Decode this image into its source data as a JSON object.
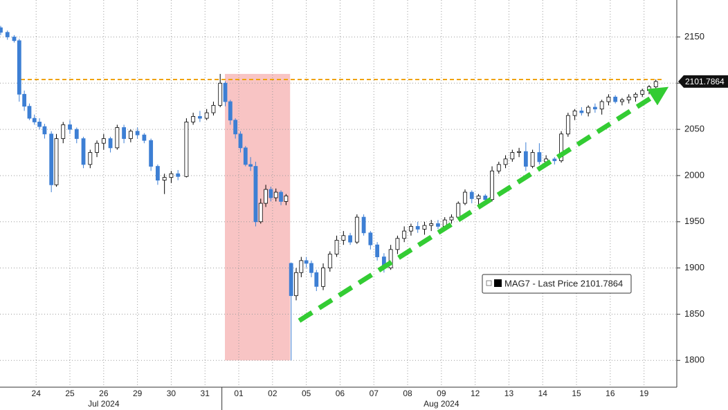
{
  "chart_data": {
    "type": "candlestick",
    "series": [
      {
        "name": "MAG7 - Last Price 2101.7864",
        "up_color": "#ffffff",
        "down_color": "#3d7fd4",
        "x": [
          -1.05,
          -0.85,
          -0.65,
          -0.5,
          -0.35,
          -0.2,
          -0.05,
          0.1,
          0.25,
          0.45,
          0.6,
          0.8,
          1.0,
          1.2,
          1.4,
          1.6,
          1.8,
          2.0,
          2.2,
          2.4,
          2.6,
          2.8,
          3.0,
          3.2,
          3.4,
          3.6,
          3.8,
          4.0,
          4.2,
          4.45,
          4.65,
          4.85,
          5.05,
          5.25,
          5.45,
          5.6,
          5.75,
          5.9,
          6.05,
          6.2,
          6.35,
          6.5,
          6.65,
          6.8,
          6.95,
          7.1,
          7.25,
          7.4,
          7.55,
          7.7,
          7.85,
          8.0,
          8.15,
          8.3,
          8.5,
          8.7,
          8.9,
          9.1,
          9.3,
          9.5,
          9.7,
          9.9,
          10.1,
          10.3,
          10.5,
          10.7,
          10.9,
          11.1,
          11.3,
          11.5,
          11.7,
          11.9,
          12.1,
          12.3,
          12.5,
          12.7,
          12.9,
          13.1,
          13.3,
          13.5,
          13.7,
          13.9,
          14.1,
          14.3,
          14.5,
          14.7,
          14.9,
          15.1,
          15.35,
          15.55,
          15.75,
          15.95,
          16.15,
          16.35,
          16.55,
          16.75,
          16.95,
          17.15,
          17.35,
          17.55,
          17.75,
          17.95,
          18.15,
          18.35
        ],
        "open": [
          2160,
          2155,
          2150,
          2146,
          2088,
          2075,
          2062,
          2058,
          2053,
          2045,
          1990,
          2040,
          2055,
          2050,
          2040,
          2012,
          2025,
          2035,
          2040,
          2030,
          2052,
          2040,
          2048,
          2044,
          2038,
          2010,
          1995,
          1998,
          2002,
          1999,
          2058,
          2064,
          2062,
          2068,
          2076,
          2100,
          2080,
          2060,
          2045,
          2030,
          2012,
          2010,
          1950,
          1970,
          1985,
          1976,
          1982,
          1972,
          1905,
          1870,
          1895,
          1908,
          1905,
          1895,
          1880,
          1900,
          1915,
          1930,
          1935,
          1928,
          1955,
          1938,
          1925,
          1912,
          1900,
          1920,
          1932,
          1940,
          1945,
          1942,
          1946,
          1948,
          1945,
          1952,
          1955,
          1970,
          1982,
          1975,
          1978,
          1974,
          2005,
          2012,
          2018,
          2025,
          2026,
          2010,
          2025,
          2015,
          2018,
          2016,
          2045,
          2065,
          2070,
          2068,
          2074,
          2072,
          2080,
          2085,
          2080,
          2082,
          2085,
          2088,
          2092,
          2096
        ],
        "high": [
          2162,
          2157,
          2152,
          2148,
          2092,
          2078,
          2066,
          2062,
          2056,
          2048,
          2045,
          2058,
          2060,
          2052,
          2042,
          2028,
          2038,
          2045,
          2042,
          2055,
          2055,
          2050,
          2052,
          2046,
          2040,
          2012,
          2002,
          2005,
          2006,
          2062,
          2068,
          2070,
          2072,
          2080,
          2110,
          2102,
          2082,
          2062,
          2048,
          2032,
          2020,
          2015,
          1975,
          1990,
          1988,
          1986,
          1984,
          1980,
          1906,
          1900,
          1912,
          1912,
          1908,
          1898,
          1905,
          1918,
          1935,
          1940,
          1938,
          1958,
          1958,
          1940,
          1928,
          1916,
          1925,
          1935,
          1945,
          1948,
          1950,
          1950,
          1952,
          1952,
          1955,
          1958,
          1972,
          1985,
          1984,
          1980,
          1980,
          2010,
          2015,
          2022,
          2028,
          2030,
          2036,
          2028,
          2035,
          2022,
          2020,
          2048,
          2068,
          2072,
          2074,
          2076,
          2078,
          2082,
          2088,
          2087,
          2084,
          2088,
          2090,
          2094,
          2098,
          2104
        ],
        "low": [
          2152,
          2147,
          2144,
          2080,
          2070,
          2060,
          2055,
          2050,
          2040,
          1982,
          1988,
          2035,
          2045,
          2035,
          2008,
          2008,
          2020,
          2028,
          2025,
          2028,
          2035,
          2036,
          2040,
          2035,
          2005,
          1990,
          1980,
          1992,
          1995,
          1998,
          2055,
          2058,
          2060,
          2065,
          2074,
          2075,
          2055,
          2040,
          2025,
          2010,
          2005,
          1945,
          1948,
          1966,
          1972,
          1972,
          1968,
          1968,
          1800,
          1865,
          1890,
          1900,
          1890,
          1875,
          1876,
          1896,
          1912,
          1925,
          1925,
          1926,
          1935,
          1920,
          1908,
          1895,
          1898,
          1915,
          1928,
          1935,
          1938,
          1936,
          1940,
          1942,
          1943,
          1948,
          1953,
          1968,
          1970,
          1968,
          1970,
          1972,
          2002,
          2008,
          2015,
          2020,
          2005,
          2008,
          2012,
          2010,
          2012,
          2014,
          2042,
          2060,
          2065,
          2064,
          2068,
          2066,
          2076,
          2078,
          2076,
          2078,
          2080,
          2085,
          2088,
          2094
        ],
        "close": [
          2155,
          2150,
          2146,
          2088,
          2075,
          2062,
          2058,
          2053,
          2045,
          1990,
          2040,
          2055,
          2050,
          2040,
          2012,
          2025,
          2035,
          2040,
          2030,
          2052,
          2040,
          2048,
          2044,
          2038,
          2010,
          1995,
          1998,
          2002,
          1999,
          2058,
          2064,
          2062,
          2068,
          2076,
          2100,
          2080,
          2060,
          2045,
          2030,
          2012,
          2010,
          1950,
          1970,
          1985,
          1976,
          1982,
          1972,
          1978,
          1870,
          1895,
          1908,
          1905,
          1895,
          1880,
          1900,
          1915,
          1930,
          1935,
          1928,
          1955,
          1938,
          1925,
          1912,
          1900,
          1920,
          1932,
          1940,
          1945,
          1942,
          1946,
          1948,
          1945,
          1952,
          1955,
          1970,
          1982,
          1975,
          1978,
          1974,
          2005,
          2012,
          2018,
          2025,
          2026,
          2010,
          2025,
          2015,
          2018,
          2016,
          2045,
          2065,
          2070,
          2068,
          2074,
          2072,
          2080,
          2085,
          2080,
          2082,
          2085,
          2088,
          2092,
          2096,
          2101.7864
        ]
      }
    ],
    "xlim": [
      -1.07,
      18.97
    ],
    "xticks": [
      {
        "value": 0,
        "label": "24"
      },
      {
        "value": 1,
        "label": "25"
      },
      {
        "value": 2,
        "label": "26"
      },
      {
        "value": 3,
        "label": "29"
      },
      {
        "value": 4,
        "label": "30"
      },
      {
        "value": 5,
        "label": "31"
      },
      {
        "value": 6,
        "label": "01"
      },
      {
        "value": 7,
        "label": "02"
      },
      {
        "value": 8,
        "label": "05"
      },
      {
        "value": 9,
        "label": "06"
      },
      {
        "value": 10,
        "label": "07"
      },
      {
        "value": 11,
        "label": "08"
      },
      {
        "value": 12,
        "label": "09"
      },
      {
        "value": 13,
        "label": "12"
      },
      {
        "value": 14,
        "label": "13"
      },
      {
        "value": 15,
        "label": "14"
      },
      {
        "value": 16,
        "label": "15"
      },
      {
        "value": 17,
        "label": "16"
      },
      {
        "value": 18,
        "label": "19"
      }
    ],
    "x_groups": [
      {
        "label": "Jul 2024",
        "x": 2
      },
      {
        "label": "Aug 2024",
        "x": 12
      }
    ],
    "ylim": [
      1771,
      2190
    ],
    "yticks": [
      1800,
      1850,
      1900,
      1950,
      2000,
      2050,
      2100,
      2150
    ],
    "grid": true,
    "last_price": 2101.7864,
    "reference_line": {
      "value": 2104,
      "color": "#f0a30a"
    },
    "highlight": {
      "x": [
        5.59,
        7.52
      ],
      "y": [
        1800,
        2110
      ],
      "color": "#f8c4c4"
    },
    "trend_arrow": {
      "x": [
        7.79,
        18.67
      ],
      "y": [
        1843,
        2095
      ],
      "color": "#33cc33"
    }
  }
}
